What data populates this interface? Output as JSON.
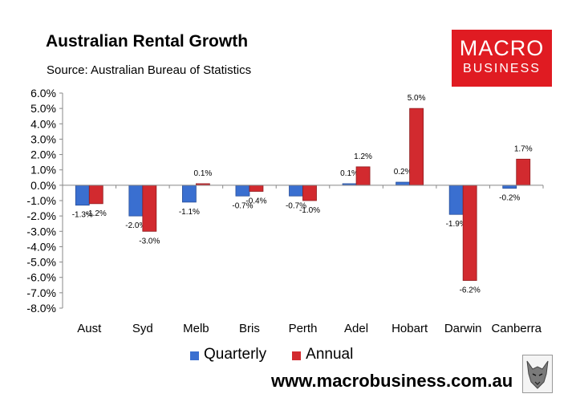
{
  "header": {
    "title": "Australian Rental Growth",
    "source": "Source: Australian Bureau of Statistics"
  },
  "logo": {
    "line1": "MACRO",
    "line2": "BUSINESS"
  },
  "footer": {
    "url": "www.macrobusiness.com.au",
    "mascot_icon": "wolf-icon"
  },
  "colors": {
    "quarterly": "#3a6fd0",
    "annual": "#d22a2f"
  },
  "chart_data": {
    "type": "bar",
    "title": "Australian Rental Growth",
    "xlabel": "",
    "ylabel": "",
    "ylim": [
      -8.0,
      6.0
    ],
    "yticks": [
      "6.0%",
      "5.0%",
      "4.0%",
      "3.0%",
      "2.0%",
      "1.0%",
      "0.0%",
      "-1.0%",
      "-2.0%",
      "-3.0%",
      "-4.0%",
      "-5.0%",
      "-6.0%",
      "-7.0%",
      "-8.0%"
    ],
    "categories": [
      "Aust",
      "Syd",
      "Melb",
      "Bris",
      "Perth",
      "Adel",
      "Hobart",
      "Darwin",
      "Canberra"
    ],
    "series": [
      {
        "name": "Quarterly",
        "values": [
          -1.3,
          -2.0,
          -1.1,
          -0.7,
          -0.7,
          0.1,
          0.2,
          -1.9,
          -0.2
        ],
        "labels": [
          "-1.3%",
          "-2.0%",
          "-1.1%",
          "-0.7%",
          "-0.7%",
          "0.1%",
          "0.2%",
          "-1.9%",
          "-0.2%"
        ]
      },
      {
        "name": "Annual",
        "values": [
          -1.2,
          -3.0,
          0.1,
          -0.4,
          -1.0,
          1.2,
          5.0,
          -6.2,
          1.7
        ],
        "labels": [
          "-1.2%",
          "-3.0%",
          "0.1%",
          "-0.4%",
          "-1.0%",
          "1.2%",
          "5.0%",
          "-6.2%",
          "1.7%"
        ]
      }
    ],
    "grid": false,
    "legend_position": "bottom"
  }
}
